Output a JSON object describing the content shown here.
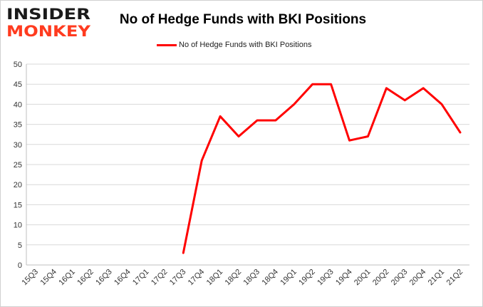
{
  "logo": {
    "line1": "INSIDER",
    "line2": "MONKEY"
  },
  "chart_data": {
    "type": "line",
    "title": "No of Hedge Funds with BKI Positions",
    "xlabel": "",
    "ylabel": "",
    "categories": [
      "15Q3",
      "15Q4",
      "16Q1",
      "16Q2",
      "16Q3",
      "16Q4",
      "17Q1",
      "17Q2",
      "17Q3",
      "17Q4",
      "18Q1",
      "18Q2",
      "18Q3",
      "18Q4",
      "19Q1",
      "19Q2",
      "19Q3",
      "19Q4",
      "20Q1",
      "20Q2",
      "20Q3",
      "20Q4",
      "21Q1",
      "21Q2"
    ],
    "series": [
      {
        "name": "No of Hedge Funds with BKI Positions",
        "color": "#ff0000",
        "values": [
          null,
          null,
          null,
          null,
          null,
          null,
          null,
          null,
          3,
          26,
          37,
          32,
          36,
          36,
          40,
          45,
          45,
          31,
          32,
          44,
          41,
          44,
          40,
          33
        ]
      }
    ],
    "ylim": [
      0,
      50
    ],
    "yticks": [
      0,
      5,
      10,
      15,
      20,
      25,
      30,
      35,
      40,
      45,
      50
    ],
    "grid": true,
    "legend": "top-center"
  }
}
